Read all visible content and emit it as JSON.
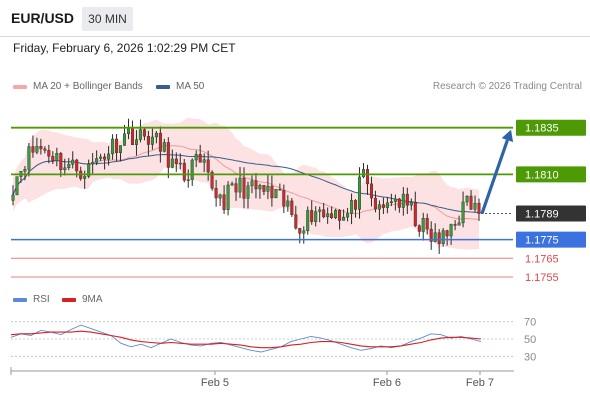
{
  "header": {
    "symbol": "EUR/USD",
    "timeframe": "30 MIN",
    "datetime": "Friday, February 6, 2026 1:02:29 PM CET"
  },
  "legend": {
    "bollinger": "MA 20 + Bollinger Bands",
    "ma50": "MA 50",
    "copyright": "Research © 2026 Trading Central",
    "rsi": "RSI",
    "rsi_ma": "9MA"
  },
  "colors": {
    "green": "#4d9a06",
    "blue": "#3b72df",
    "red": "#e0484b",
    "dark": "#333333",
    "bollinger_fill": "#fce2e2",
    "ma20": "#f29a9a",
    "ma50": "#365f8c",
    "rsi": "#5c8ad8",
    "rsi_ma": "#d91f1f",
    "arrow": "#2f63a8"
  },
  "chart_data": [
    {
      "type": "candlestick",
      "title": "",
      "xlabel": "",
      "ylabel": "",
      "x_tick_labels": [
        "Feb 5",
        "Feb 6",
        "Feb 7"
      ],
      "ylim": [
        1.1748,
        1.1852
      ],
      "grid": false,
      "legend_position": "top-left",
      "levels": [
        {
          "value": 1.1835,
          "label": "1.1835",
          "kind": "resistance",
          "color": "#4d9a06"
        },
        {
          "value": 1.181,
          "label": "1.1810",
          "kind": "resistance",
          "color": "#4d9a06"
        },
        {
          "value": 1.1789,
          "label": "1.1789",
          "kind": "last-price",
          "color": "#333333"
        },
        {
          "value": 1.1775,
          "label": "1.1775",
          "kind": "pivot",
          "color": "#3b72df"
        },
        {
          "value": 1.1765,
          "label": "1.1765",
          "kind": "support",
          "color": "#e0484b"
        },
        {
          "value": 1.1755,
          "label": "1.1755",
          "kind": "support",
          "color": "#e0484b"
        }
      ],
      "forecast_arrow": {
        "from": 1.1789,
        "to": 1.1835,
        "direction": "up"
      },
      "price_path": [
        1.1805,
        1.1818,
        1.1825,
        1.1822,
        1.1815,
        1.1813,
        1.1812,
        1.1818,
        1.1822,
        1.1827,
        1.1833,
        1.1829,
        1.1831,
        1.1826,
        1.1821,
        1.1812,
        1.1809,
        1.1816,
        1.1812,
        1.1802,
        1.1796,
        1.1801,
        1.1804,
        1.1801,
        1.1802,
        1.1799,
        1.1796,
        1.1792,
        1.1783,
        1.1786,
        1.1792,
        1.1788,
        1.1793,
        1.1786,
        1.1792,
        1.1808,
        1.1796,
        1.1788,
        1.1798,
        1.1795,
        1.1792,
        1.1784,
        1.1778,
        1.1774,
        1.1776,
        1.1783,
        1.1788,
        1.1793,
        1.1795,
        1.1792,
        1.179,
        1.1788,
        1.1789
      ],
      "price_path_x": [
        0,
        0.025,
        0.05,
        0.08,
        0.11,
        0.14,
        0.16,
        0.18,
        0.2,
        0.22,
        0.25,
        0.27,
        0.29,
        0.31,
        0.33,
        0.35,
        0.37,
        0.39,
        0.41,
        0.43,
        0.45,
        0.47,
        0.49,
        0.51,
        0.53,
        0.55,
        0.57,
        0.59,
        0.61,
        0.63,
        0.65,
        0.67,
        0.69,
        0.71,
        0.73,
        0.75,
        0.77,
        0.79,
        0.81,
        0.83,
        0.85,
        0.87,
        0.89,
        0.91,
        0.93,
        0.94,
        0.955,
        0.97,
        0.98,
        0.99,
        0.995,
        0.998,
        1.0
      ]
    },
    {
      "type": "line",
      "title": "",
      "ylim": [
        20,
        80
      ],
      "y_ticks": [
        "70",
        "50",
        "30"
      ],
      "series": [
        {
          "name": "RSI",
          "values": [
            52,
            56,
            54,
            60,
            58,
            55,
            61,
            66,
            62,
            58,
            54,
            45,
            41,
            44,
            40,
            45,
            50,
            46,
            43,
            42,
            45,
            46,
            43,
            40,
            37,
            35,
            38,
            41,
            47,
            50,
            53,
            51,
            48,
            44,
            40,
            37,
            39,
            42,
            40,
            42,
            47,
            51,
            56,
            55,
            51,
            53,
            50,
            47
          ]
        },
        {
          "name": "9MA",
          "values": [
            55,
            56,
            56,
            57,
            58,
            58,
            58,
            59,
            58,
            56,
            54,
            52,
            49,
            47,
            46,
            45,
            46,
            45,
            44,
            44,
            44,
            45,
            44,
            43,
            41,
            40,
            40,
            41,
            43,
            44,
            46,
            47,
            47,
            46,
            44,
            42,
            41,
            41,
            41,
            42,
            44,
            46,
            49,
            51,
            52,
            52,
            51,
            50
          ]
        }
      ]
    }
  ]
}
